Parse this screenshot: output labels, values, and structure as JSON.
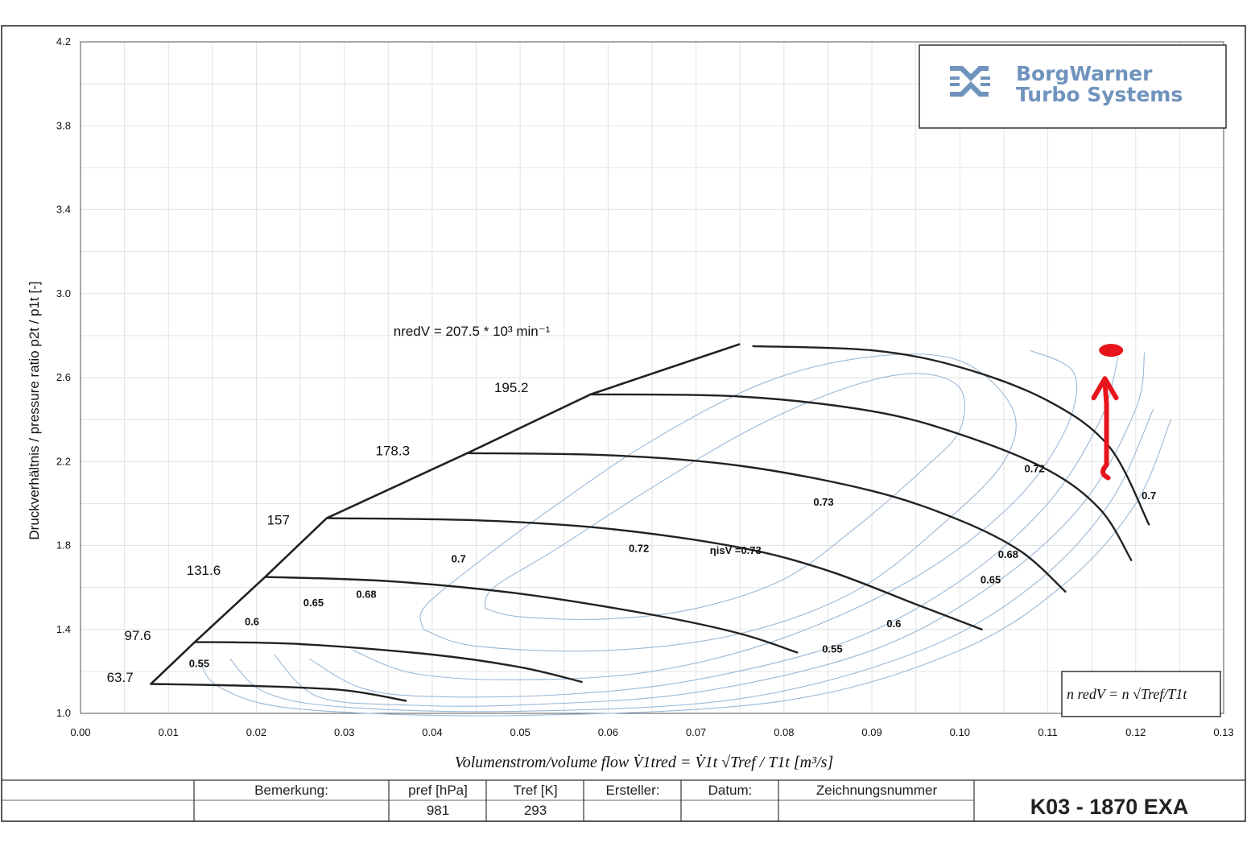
{
  "logo": {
    "line1": "BorgWarner",
    "line2": "Turbo Systems"
  },
  "formula_box": {
    "text": "n redV  =  n √Tref/T1t"
  },
  "table": {
    "bemerkung_label": "Bemerkung:",
    "pref_label": "pref [hPa]",
    "pref_value": "981",
    "tref_label": "Tref [K]",
    "tref_value": "293",
    "ersteller_label": "Ersteller:",
    "datum_label": "Datum:",
    "zeichnung_label": "Zeichnungsnummer",
    "drawing_code": "K03 - 1870 EXA"
  },
  "colors": {
    "speed_lines": "#222222",
    "efficiency_islands": "#9ab8d6",
    "grid": "#e2e2e2",
    "annotation": "#e8141c",
    "logo": "#6f93bd"
  },
  "chart_data": {
    "type": "line",
    "title": "",
    "xlabel": "Volumenstrom/volume flow   V̇1tred = V̇1t √Tref / T1t  [m³/s]",
    "ylabel": "Druckverhältnis / pressure ratio    p2t / p1t [-]",
    "xlim": [
      0,
      0.13
    ],
    "ylim": [
      1.0,
      4.2
    ],
    "x_ticks": [
      "0.00",
      "0.01",
      "0.02",
      "0.03",
      "0.04",
      "0.05",
      "0.06",
      "0.07",
      "0.08",
      "0.09",
      "0.10",
      "0.11",
      "0.12",
      "0.13"
    ],
    "y_ticks": [
      "1.0",
      "1.4",
      "1.8",
      "2.2",
      "2.6",
      "3.0",
      "3.4",
      "3.8",
      "4.2"
    ],
    "grid": true,
    "surge_line": [
      [
        0.008,
        1.14
      ],
      [
        0.013,
        1.34
      ],
      [
        0.021,
        1.65
      ],
      [
        0.028,
        1.93
      ],
      [
        0.044,
        2.24
      ],
      [
        0.058,
        2.52
      ],
      [
        0.075,
        2.76
      ]
    ],
    "speed_lines": [
      {
        "label": "63.7",
        "points": [
          [
            0.008,
            1.14
          ],
          [
            0.02,
            1.13
          ],
          [
            0.03,
            1.11
          ],
          [
            0.037,
            1.06
          ]
        ]
      },
      {
        "label": "97.6",
        "points": [
          [
            0.013,
            1.34
          ],
          [
            0.025,
            1.33
          ],
          [
            0.04,
            1.28
          ],
          [
            0.05,
            1.22
          ],
          [
            0.057,
            1.15
          ]
        ]
      },
      {
        "label": "131.6",
        "points": [
          [
            0.021,
            1.65
          ],
          [
            0.035,
            1.63
          ],
          [
            0.05,
            1.57
          ],
          [
            0.065,
            1.47
          ],
          [
            0.075,
            1.38
          ],
          [
            0.0815,
            1.29
          ]
        ]
      },
      {
        "label": "157",
        "points": [
          [
            0.028,
            1.93
          ],
          [
            0.045,
            1.92
          ],
          [
            0.06,
            1.88
          ],
          [
            0.075,
            1.79
          ],
          [
            0.085,
            1.68
          ],
          [
            0.095,
            1.52
          ],
          [
            0.1025,
            1.4
          ]
        ]
      },
      {
        "label": "178.3",
        "points": [
          [
            0.044,
            2.24
          ],
          [
            0.06,
            2.23
          ],
          [
            0.075,
            2.18
          ],
          [
            0.09,
            2.06
          ],
          [
            0.1,
            1.92
          ],
          [
            0.107,
            1.77
          ],
          [
            0.112,
            1.58
          ]
        ]
      },
      {
        "label": "195.2",
        "points": [
          [
            0.058,
            2.52
          ],
          [
            0.075,
            2.51
          ],
          [
            0.09,
            2.44
          ],
          [
            0.1,
            2.33
          ],
          [
            0.11,
            2.16
          ],
          [
            0.116,
            1.97
          ],
          [
            0.1195,
            1.73
          ]
        ]
      },
      {
        "label": "nredV = 207.5 * 10³ min⁻¹",
        "points": [
          [
            0.0765,
            2.75
          ],
          [
            0.09,
            2.73
          ],
          [
            0.1,
            2.65
          ],
          [
            0.11,
            2.49
          ],
          [
            0.117,
            2.27
          ],
          [
            0.1215,
            1.9
          ]
        ]
      }
    ],
    "efficiency_contours": [
      {
        "label": "ηisV =0.73",
        "points": [
          [
            0.046,
            1.5
          ],
          [
            0.05,
            1.46
          ],
          [
            0.06,
            1.45
          ],
          [
            0.07,
            1.5
          ],
          [
            0.08,
            1.64
          ],
          [
            0.088,
            1.88
          ],
          [
            0.096,
            2.17
          ],
          [
            0.1,
            2.35
          ],
          [
            0.1,
            2.55
          ],
          [
            0.095,
            2.62
          ],
          [
            0.087,
            2.55
          ],
          [
            0.076,
            2.35
          ],
          [
            0.064,
            2.05
          ],
          [
            0.054,
            1.78
          ],
          [
            0.047,
            1.6
          ],
          [
            0.046,
            1.5
          ]
        ]
      },
      {
        "label": "0.72",
        "points": [
          [
            0.039,
            1.4
          ],
          [
            0.045,
            1.32
          ],
          [
            0.06,
            1.3
          ],
          [
            0.075,
            1.38
          ],
          [
            0.088,
            1.58
          ],
          [
            0.098,
            1.9
          ],
          [
            0.105,
            2.2
          ],
          [
            0.106,
            2.45
          ],
          [
            0.1,
            2.68
          ],
          [
            0.09,
            2.7
          ],
          [
            0.078,
            2.58
          ],
          [
            0.065,
            2.3
          ],
          [
            0.053,
            1.96
          ],
          [
            0.044,
            1.68
          ],
          [
            0.039,
            1.5
          ],
          [
            0.039,
            1.4
          ]
        ]
      },
      {
        "label": "0.7",
        "points": [
          [
            0.031,
            1.3
          ],
          [
            0.038,
            1.19
          ],
          [
            0.05,
            1.16
          ],
          [
            0.065,
            1.2
          ],
          [
            0.08,
            1.36
          ],
          [
            0.095,
            1.65
          ],
          [
            0.106,
            2.0
          ],
          [
            0.112,
            2.35
          ],
          [
            0.113,
            2.62
          ],
          [
            0.108,
            2.73
          ]
        ]
      },
      {
        "label": "0.68",
        "points": [
          [
            0.026,
            1.26
          ],
          [
            0.032,
            1.12
          ],
          [
            0.04,
            1.08
          ],
          [
            0.055,
            1.09
          ],
          [
            0.07,
            1.16
          ],
          [
            0.087,
            1.34
          ],
          [
            0.1,
            1.63
          ],
          [
            0.11,
            2.0
          ],
          [
            0.116,
            2.4
          ],
          [
            0.118,
            2.7
          ]
        ]
      },
      {
        "label": "0.65",
        "points": [
          [
            0.022,
            1.28
          ],
          [
            0.027,
            1.08
          ],
          [
            0.037,
            1.04
          ],
          [
            0.05,
            1.04
          ],
          [
            0.07,
            1.1
          ],
          [
            0.09,
            1.3
          ],
          [
            0.104,
            1.62
          ],
          [
            0.114,
            2.0
          ],
          [
            0.12,
            2.45
          ],
          [
            0.121,
            2.72
          ]
        ]
      },
      {
        "label": "0.6",
        "points": [
          [
            0.017,
            1.26
          ],
          [
            0.021,
            1.1
          ],
          [
            0.03,
            1.03
          ],
          [
            0.05,
            1.01
          ],
          [
            0.075,
            1.07
          ],
          [
            0.095,
            1.29
          ],
          [
            0.108,
            1.6
          ],
          [
            0.117,
            2.0
          ],
          [
            0.122,
            2.45
          ]
        ]
      },
      {
        "label": "0.55",
        "points": [
          [
            0.0135,
            1.25
          ],
          [
            0.016,
            1.12
          ],
          [
            0.025,
            1.02
          ],
          [
            0.05,
            0.99
          ],
          [
            0.08,
            1.06
          ],
          [
            0.1,
            1.3
          ],
          [
            0.112,
            1.62
          ],
          [
            0.12,
            2.0
          ],
          [
            0.124,
            2.4
          ]
        ]
      }
    ],
    "efficiency_labels": [
      {
        "text": "ηisV =0.73",
        "x": 0.0745,
        "y": 1.76
      },
      {
        "text": "0.72",
        "x": 0.0635,
        "y": 1.77
      },
      {
        "text": "0.7",
        "x": 0.043,
        "y": 1.72
      },
      {
        "text": "0.68",
        "x": 0.0325,
        "y": 1.55
      },
      {
        "text": "0.65",
        "x": 0.0265,
        "y": 1.51
      },
      {
        "text": "0.6",
        "x": 0.0195,
        "y": 1.42
      },
      {
        "text": "0.55",
        "x": 0.0135,
        "y": 1.22
      },
      {
        "text": "0.72",
        "x": 0.1085,
        "y": 2.15
      },
      {
        "text": "0.73",
        "x": 0.0845,
        "y": 1.99
      },
      {
        "text": "0.7",
        "x": 0.1215,
        "y": 2.02
      },
      {
        "text": "0.68",
        "x": 0.1055,
        "y": 1.74
      },
      {
        "text": "0.65",
        "x": 0.1035,
        "y": 1.62
      },
      {
        "text": "0.6",
        "x": 0.0925,
        "y": 1.41
      },
      {
        "text": "0.55",
        "x": 0.0855,
        "y": 1.29
      }
    ],
    "speed_label_positions": [
      {
        "text": "63.7",
        "x": 0.0045,
        "y": 1.15
      },
      {
        "text": "97.6",
        "x": 0.0065,
        "y": 1.35
      },
      {
        "text": "131.6",
        "x": 0.014,
        "y": 1.66
      },
      {
        "text": "157",
        "x": 0.0225,
        "y": 1.9
      },
      {
        "text": "178.3",
        "x": 0.0355,
        "y": 2.23
      },
      {
        "text": "195.2",
        "x": 0.049,
        "y": 2.53
      },
      {
        "text": "nredV = 207.5 * 10³ min⁻¹",
        "x": 0.0445,
        "y": 2.8
      }
    ],
    "annotation_arrow": {
      "from": [
        0.1165,
        2.13
      ],
      "to": [
        0.1165,
        2.58
      ],
      "head_blob": [
        0.1172,
        2.73
      ]
    }
  }
}
